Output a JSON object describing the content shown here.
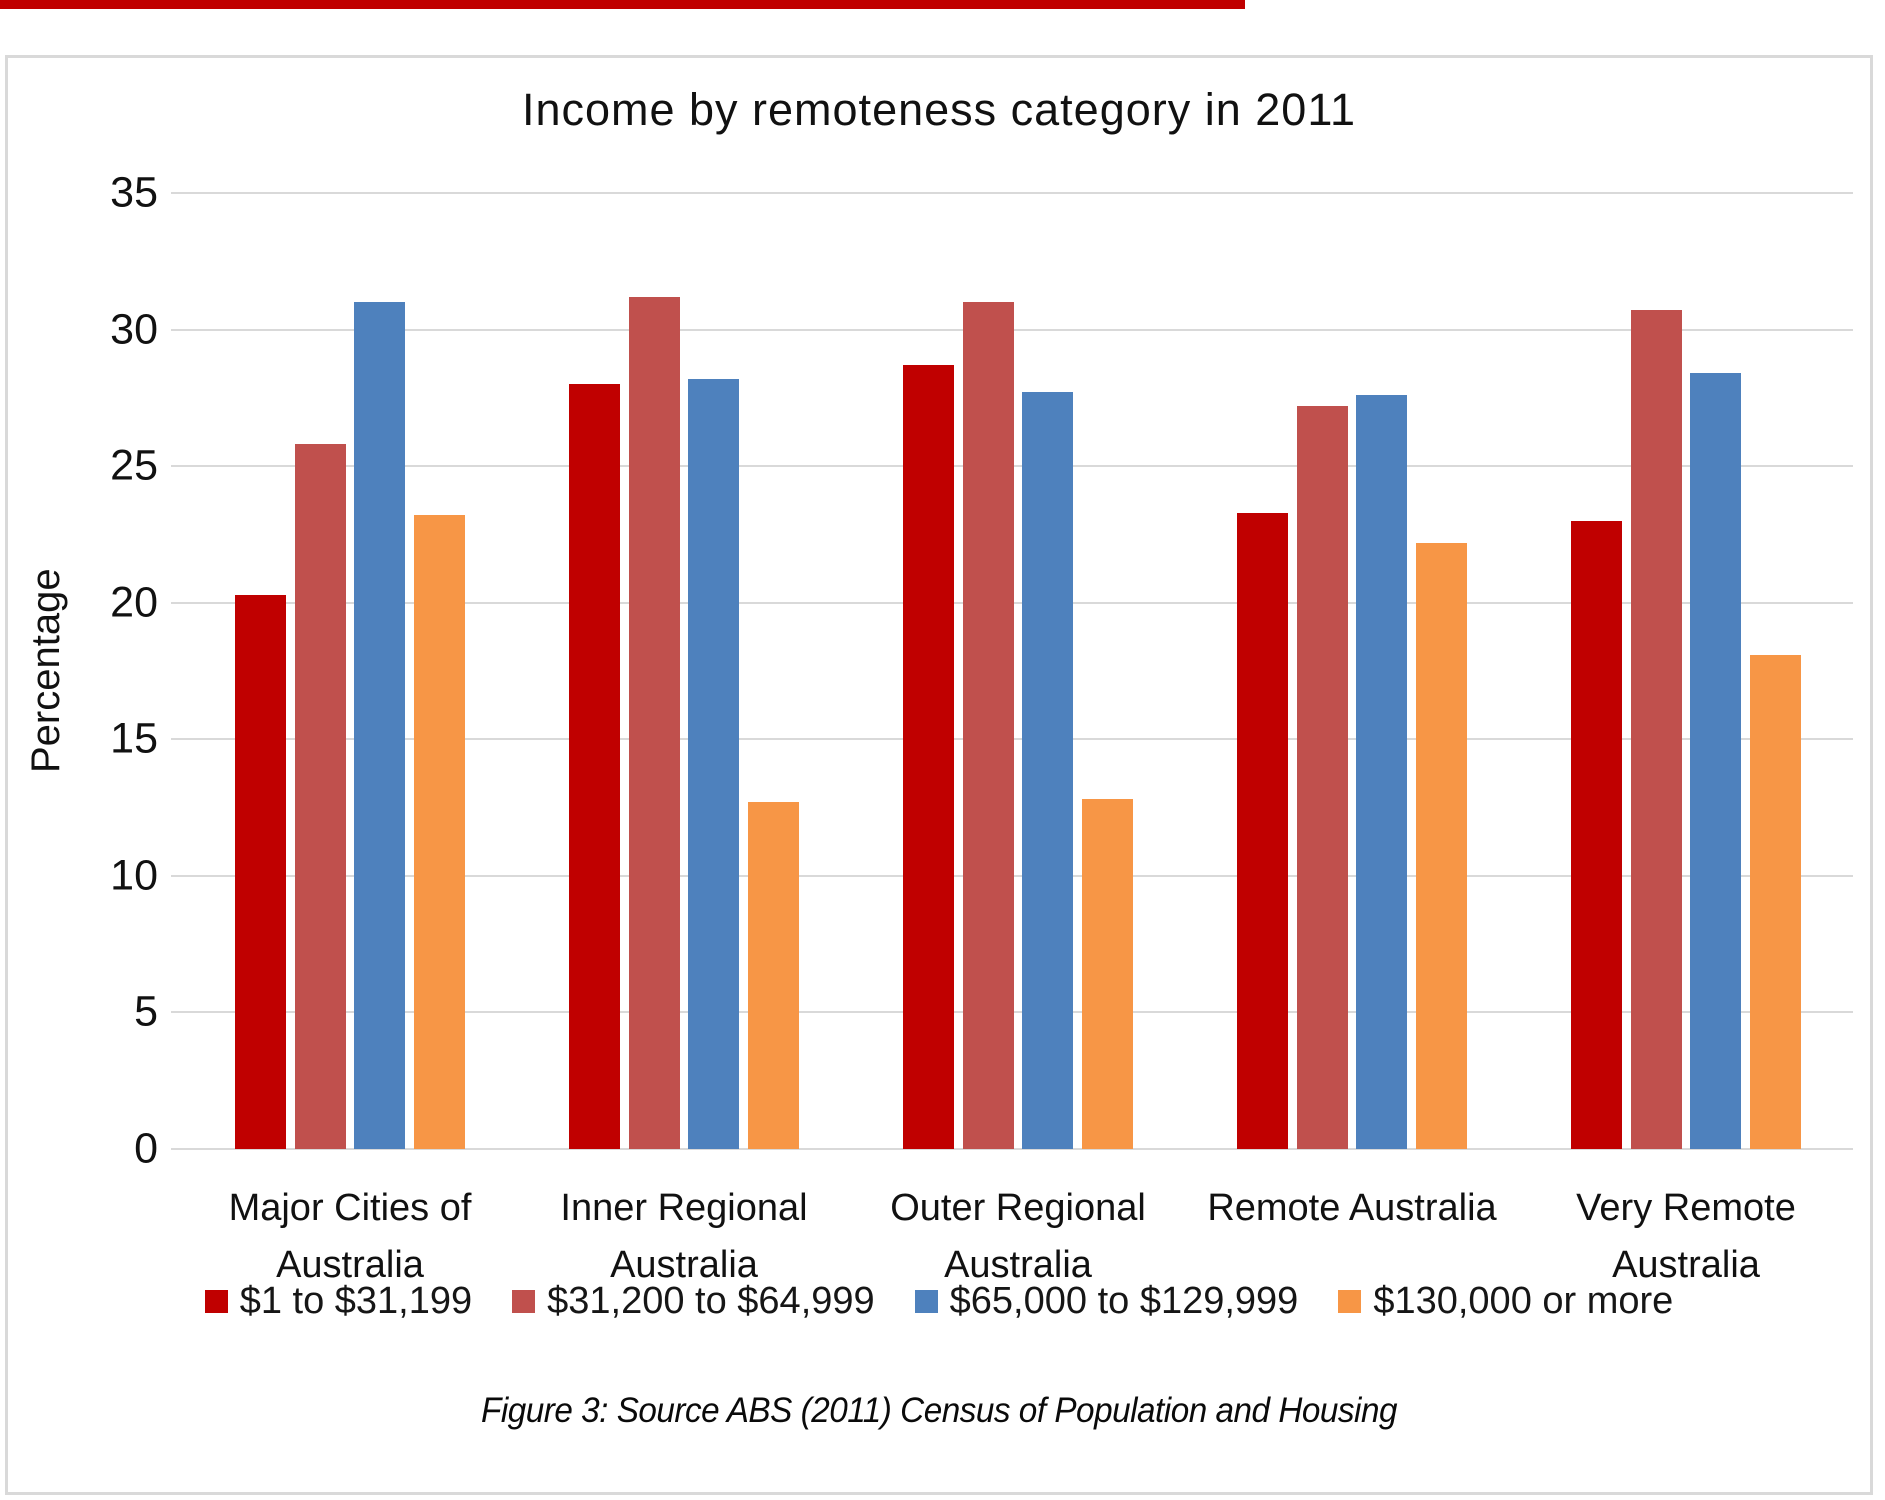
{
  "page": {
    "colors": {
      "top_strip": "#c00000",
      "frame_border": "#d9d9d9",
      "gridline": "#d9d9d9"
    }
  },
  "chart": {
    "title": "Income by remoteness category in 2011",
    "y_axis_label": "Percentage",
    "caption": "Figure 3: Source ABS (2011) Census of Population and Housing"
  },
  "chart_data": {
    "type": "bar",
    "title": "Income by remoteness category in 2011",
    "xlabel": "",
    "ylabel": "Percentage",
    "ylim": [
      0,
      35
    ],
    "yticks": [
      0,
      5,
      10,
      15,
      20,
      25,
      30,
      35
    ],
    "grid": true,
    "legend_position": "bottom",
    "categories": [
      "Major Cities of Australia",
      "Inner Regional Australia",
      "Outer Regional Australia",
      "Remote Australia",
      "Very Remote Australia"
    ],
    "label_lines": [
      [
        "Major Cities of",
        "Australia"
      ],
      [
        "Inner Regional",
        "Australia"
      ],
      [
        "Outer Regional",
        "Australia"
      ],
      [
        "Remote Australia"
      ],
      [
        "Very Remote",
        "Australia"
      ]
    ],
    "series": [
      {
        "name": "$1 to $31,199",
        "color": "#c00000",
        "values": [
          20.3,
          28.0,
          28.7,
          23.3,
          23.0
        ]
      },
      {
        "name": "$31,200 to $64,999",
        "color": "#c0504d",
        "values": [
          25.8,
          31.2,
          31.0,
          27.2,
          30.7
        ]
      },
      {
        "name": "$65,000 to $129,999",
        "color": "#4e81bd",
        "values": [
          31.0,
          28.2,
          27.7,
          27.6,
          28.4
        ]
      },
      {
        "name": "$130,000 or more",
        "color": "#f79646",
        "values": [
          23.2,
          12.7,
          12.8,
          22.2,
          18.1
        ]
      }
    ]
  }
}
